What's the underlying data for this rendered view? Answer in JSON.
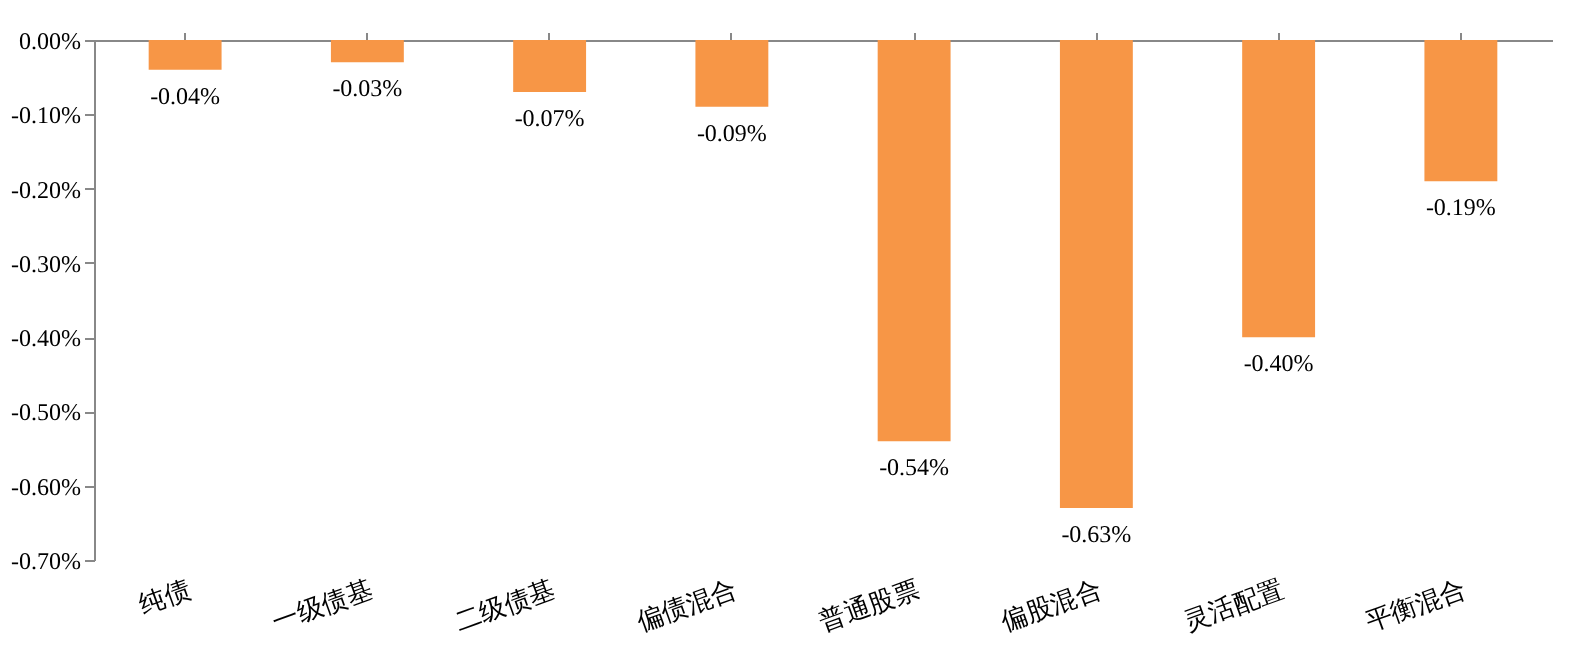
{
  "chart_data": {
    "type": "bar",
    "categories": [
      "纯债",
      "一级债基",
      "二级债基",
      "偏债混合",
      "普通股票",
      "偏股混合",
      "灵活配置",
      "平衡混合"
    ],
    "values": [
      -0.04,
      -0.03,
      -0.07,
      -0.09,
      -0.54,
      -0.63,
      -0.4,
      -0.19
    ],
    "value_labels": [
      "-0.04%",
      "-0.03%",
      "-0.07%",
      "-0.09%",
      "-0.54%",
      "-0.63%",
      "-0.40%",
      "-0.19%"
    ],
    "color": "#f79646",
    "ylim": [
      -0.7,
      0
    ],
    "yticks": [
      {
        "value": 0,
        "label": "0.00%"
      },
      {
        "value": -0.1,
        "label": "-0.10%"
      },
      {
        "value": -0.2,
        "label": "-0.20%"
      },
      {
        "value": -0.3,
        "label": "-0.30%"
      },
      {
        "value": -0.4,
        "label": "-0.40%"
      },
      {
        "value": -0.5,
        "label": "-0.50%"
      },
      {
        "value": -0.6,
        "label": "-0.60%"
      },
      {
        "value": -0.7,
        "label": "-0.70%"
      }
    ],
    "grid": false
  }
}
